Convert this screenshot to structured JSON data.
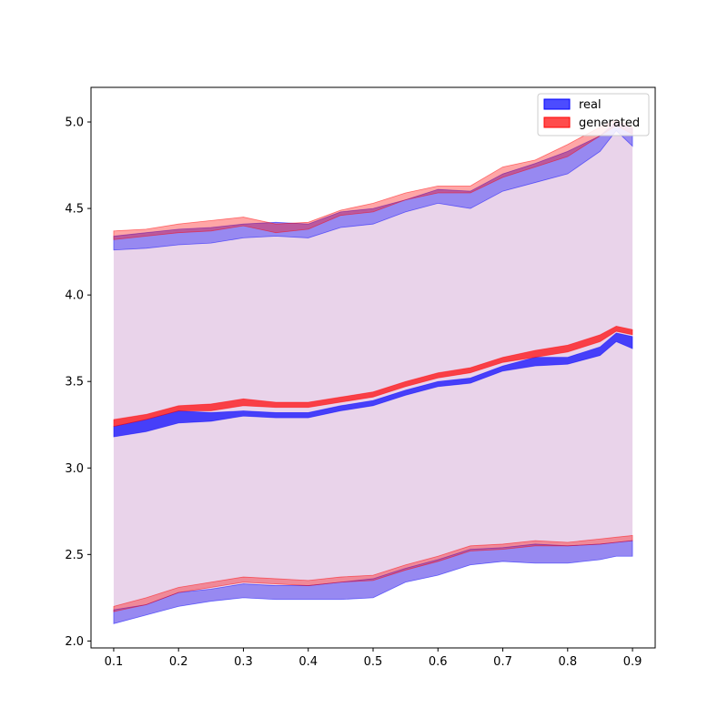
{
  "chart_data": {
    "type": "area",
    "title": "",
    "xlabel": "",
    "ylabel": "",
    "xlim": [
      0.065,
      0.935
    ],
    "ylim": [
      1.96,
      5.2
    ],
    "x_ticks": [
      0.1,
      0.2,
      0.3,
      0.4,
      0.5,
      0.6,
      0.7,
      0.8,
      0.9
    ],
    "y_ticks": [
      2.0,
      2.5,
      3.0,
      3.5,
      4.0,
      4.5,
      5.0
    ],
    "x_tick_labels": [
      "0.1",
      "0.2",
      "0.3",
      "0.4",
      "0.5",
      "0.6",
      "0.7",
      "0.8",
      "0.9"
    ],
    "y_tick_labels": [
      "2.0",
      "2.5",
      "3.0",
      "3.5",
      "4.0",
      "4.5",
      "5.0"
    ],
    "grid": false,
    "legend_position": "top-right",
    "x": [
      0.1,
      0.15,
      0.2,
      0.25,
      0.3,
      0.35,
      0.4,
      0.45,
      0.5,
      0.55,
      0.6,
      0.65,
      0.7,
      0.75,
      0.8,
      0.85,
      0.875,
      0.9
    ],
    "series": [
      {
        "name": "real",
        "color": "#0000ff",
        "bands": {
          "upper_outer": [
            4.34,
            4.36,
            4.38,
            4.39,
            4.41,
            4.42,
            4.41,
            4.48,
            4.5,
            4.55,
            4.61,
            4.6,
            4.7,
            4.76,
            4.83,
            4.92,
            5.0,
            4.96
          ],
          "upper_inner": [
            4.26,
            4.27,
            4.29,
            4.3,
            4.33,
            4.34,
            4.33,
            4.39,
            4.41,
            4.48,
            4.53,
            4.5,
            4.6,
            4.65,
            4.7,
            4.83,
            4.95,
            4.86
          ],
          "mean_upper": [
            3.24,
            3.28,
            3.33,
            3.32,
            3.33,
            3.32,
            3.32,
            3.36,
            3.39,
            3.45,
            3.5,
            3.52,
            3.59,
            3.64,
            3.64,
            3.7,
            3.78,
            3.76
          ],
          "mean_lower": [
            3.18,
            3.21,
            3.26,
            3.27,
            3.3,
            3.29,
            3.29,
            3.33,
            3.36,
            3.42,
            3.47,
            3.49,
            3.56,
            3.59,
            3.6,
            3.65,
            3.73,
            3.69
          ],
          "lower_inner": [
            2.18,
            2.21,
            2.28,
            2.3,
            2.33,
            2.32,
            2.32,
            2.34,
            2.36,
            2.42,
            2.47,
            2.53,
            2.54,
            2.56,
            2.55,
            2.56,
            2.57,
            2.58
          ],
          "lower_outer": [
            2.1,
            2.15,
            2.2,
            2.23,
            2.25,
            2.24,
            2.24,
            2.24,
            2.25,
            2.34,
            2.38,
            2.44,
            2.46,
            2.45,
            2.45,
            2.47,
            2.49,
            2.49
          ]
        }
      },
      {
        "name": "generated",
        "color": "#ff0000",
        "bands": {
          "upper_outer": [
            4.37,
            4.38,
            4.41,
            4.43,
            4.45,
            4.41,
            4.42,
            4.49,
            4.53,
            4.59,
            4.63,
            4.63,
            4.74,
            4.78,
            4.87,
            4.97,
            5.01,
            4.97
          ],
          "upper_inner": [
            4.32,
            4.34,
            4.36,
            4.37,
            4.4,
            4.36,
            4.38,
            4.46,
            4.48,
            4.55,
            4.59,
            4.59,
            4.68,
            4.74,
            4.8,
            4.92,
            4.98,
            4.93
          ],
          "mean_upper": [
            3.28,
            3.31,
            3.36,
            3.37,
            3.4,
            3.38,
            3.38,
            3.41,
            3.44,
            3.5,
            3.55,
            3.58,
            3.64,
            3.68,
            3.71,
            3.77,
            3.82,
            3.8
          ],
          "mean_lower": [
            3.24,
            3.28,
            3.33,
            3.33,
            3.36,
            3.35,
            3.35,
            3.38,
            3.41,
            3.47,
            3.52,
            3.55,
            3.61,
            3.64,
            3.67,
            3.73,
            3.79,
            3.77
          ],
          "lower_inner": [
            2.2,
            2.25,
            2.31,
            2.34,
            2.37,
            2.36,
            2.35,
            2.37,
            2.38,
            2.44,
            2.49,
            2.55,
            2.56,
            2.58,
            2.57,
            2.59,
            2.6,
            2.61
          ],
          "lower_outer": [
            2.17,
            2.21,
            2.28,
            2.31,
            2.34,
            2.33,
            2.32,
            2.34,
            2.35,
            2.41,
            2.46,
            2.52,
            2.53,
            2.55,
            2.55,
            2.56,
            2.57,
            2.58
          ]
        }
      }
    ],
    "fill_between": {
      "color": "#e9d3ea",
      "upper": "upper_outer",
      "lower": "lower_outer"
    }
  }
}
